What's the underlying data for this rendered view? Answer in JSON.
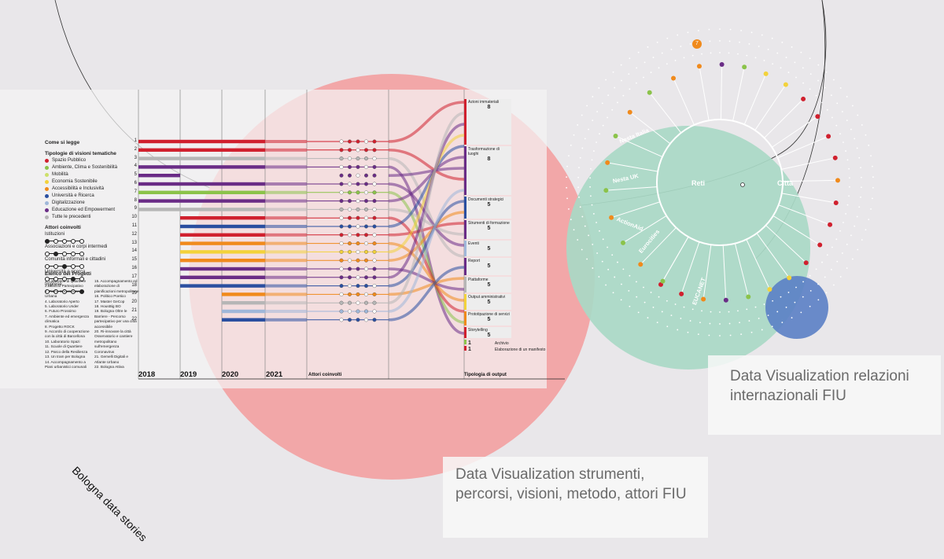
{
  "page_title": "Bologna data stories",
  "captions": {
    "left": "Data Visualization strumenti, percorsi, visioni, metodo, attori FIU",
    "right": "Data Visualization relazioni internazionali  FIU"
  },
  "timeline": {
    "years": [
      "2018",
      "2019",
      "2020",
      "2021"
    ],
    "actors_label": "Attori coinvolti",
    "output_label": "Tipologia di output",
    "rows": [
      "1",
      "2",
      "3",
      "4",
      "5",
      "6",
      "7",
      "8",
      "9",
      "10",
      "11",
      "12",
      "13",
      "14",
      "15",
      "16",
      "17",
      "18",
      "19",
      "20",
      "21",
      "22"
    ]
  },
  "legend": {
    "how_to_read": "Come si legge",
    "visions_title": "Tipologie di visioni tematiche",
    "visions": [
      {
        "label": "Spazio Pubblico",
        "color": "#d0202e"
      },
      {
        "label": "Ambiente, Clima e Sostenibilità",
        "color": "#8bc34a"
      },
      {
        "label": "Mobilità",
        "color": "#cde06a"
      },
      {
        "label": "Economia Sostenibile",
        "color": "#f3d23b"
      },
      {
        "label": "Accessibilità e Inclusività",
        "color": "#f08a1c"
      },
      {
        "label": "Università e Ricerca",
        "color": "#2a4fa0"
      },
      {
        "label": "Digitalizzazione",
        "color": "#9fb7d9"
      },
      {
        "label": "Educazione ed Empowerment",
        "color": "#6a2c86"
      },
      {
        "label": "Tutte le precedenti",
        "color": "#b6b6b6"
      }
    ],
    "actors_title": "Attori coinvolti",
    "actors": [
      {
        "label": "Istituzioni",
        "filled": 0
      },
      {
        "label": "Associazioni e corpi intermedi",
        "filled": 1
      },
      {
        "label": "Comunità informali e cittadini",
        "filled": 2
      },
      {
        "label": "Università e ricerca",
        "filled": 3
      },
      {
        "label": "Imprese",
        "filled": 4
      }
    ],
    "projects_title": "Elenco dei Progetti",
    "projects_col1": [
      "1. Laboratori di Quartiere",
      "2.Bilancio Partecipativo",
      "3. Piano Innovazione Urbana",
      "4. Laboratorio Aperto",
      "5. Laboratorio Under",
      "6. Futuro Prossimo",
      "7. Ambiente ed emergenza climatica",
      "8. Progetto ROCK",
      "9. Accordo di cooperazione con la città di Barcellona",
      "10. Laboratorio Spazi",
      "11. Scuole di Quartiere",
      "12. Parco della Resilienza",
      "13. Un tram per Bologna",
      "14. Accompagnamento a Piani urbanistici comunali"
    ],
    "projects_col2": [
      "15. Accompagnamento ed elaborazione di pianificazioni metropolitane",
      "16. Politico Poetico",
      "17. Master GeCop",
      "18. HousBig BO",
      "19. Bologna Oltre le Barriere - Percorso partecipativo per una città accessibile",
      "20. Ri-innovare la città Osservatorio e cantiere metropolitano sull'emergenza Coronavirus",
      "21. Gemelli Digitali e Atlante Urbano",
      "22. Bologna Attiva"
    ]
  },
  "outputs": [
    {
      "label": "Azioni immateriali",
      "count": "8"
    },
    {
      "label": "Trasformazione di luoghi",
      "count": "8"
    },
    {
      "label": "Documenti strategici",
      "count": "5"
    },
    {
      "label": "Strumenti di formazione",
      "count": "5"
    },
    {
      "label": "Eventi",
      "count": "5"
    },
    {
      "label": "Report",
      "count": "5"
    },
    {
      "label": "Piattaforme",
      "count": "5"
    },
    {
      "label": "Output amministrativi",
      "count": "5"
    },
    {
      "label": "Prototipazione di servizi",
      "count": "5"
    },
    {
      "label": "Storytelling",
      "count": "5"
    },
    {
      "label": "Archivio",
      "count": "1"
    },
    {
      "label": "Elaborazione di un manifesto",
      "count": "1"
    }
  ],
  "network": {
    "hub_left": "Reti",
    "hub_right": "Città",
    "top_badge": "7",
    "spoke_labels": [
      "Nesta Italia",
      "Nesta UK",
      "ActionAid",
      "Eurocities",
      "EUCANET"
    ]
  },
  "colors": {
    "pink_circle": "#f2a7a8",
    "green_circle": "#a9d9c6",
    "blue_circle": "#5b7fc5",
    "grey_boxes": "#e3e3e3"
  }
}
